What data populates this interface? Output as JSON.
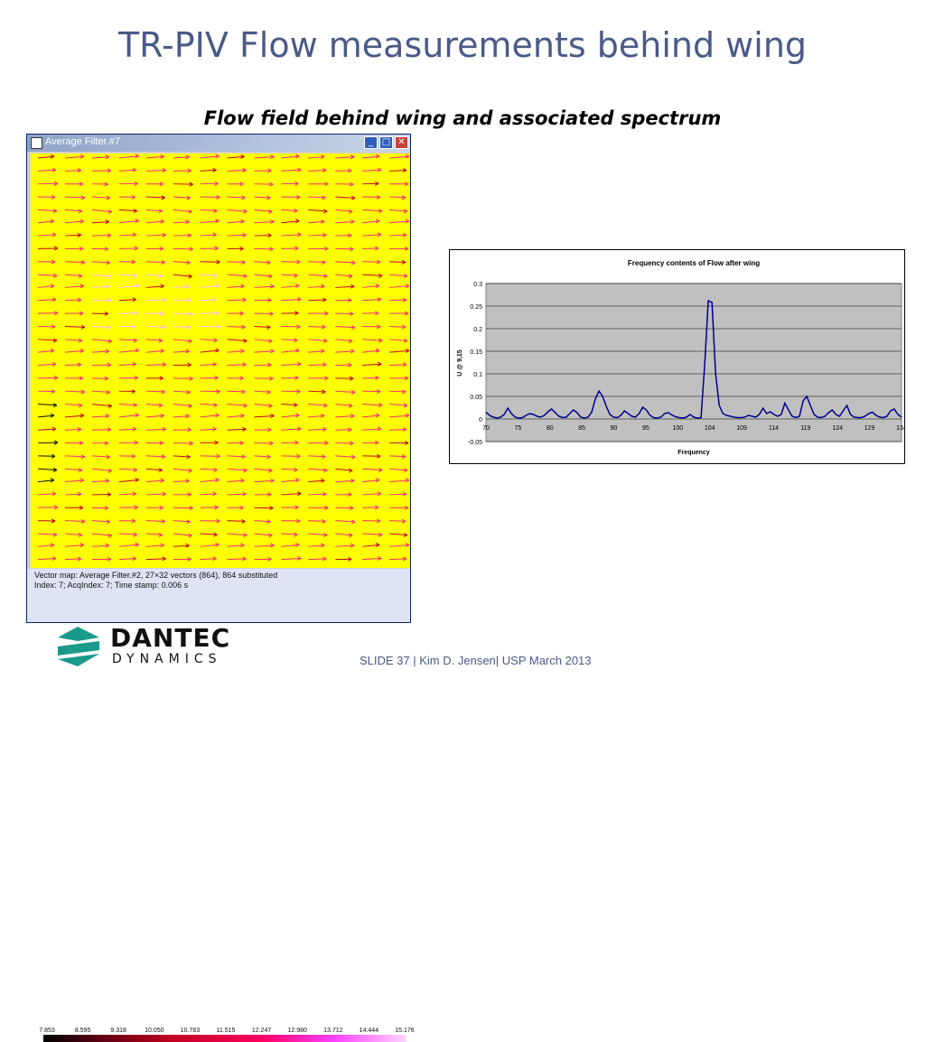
{
  "slide": {
    "title": "TR-PIV Flow measurements behind wing",
    "subtitle": "Flow field behind wing and associated spectrum",
    "footer": "SLIDE 37  |  Kim D. Jensen|  USP March 2013"
  },
  "window": {
    "title": "Average Filter.#7",
    "buttons": [
      "minimize",
      "maximize",
      "close"
    ],
    "status_line1": "Vector map: Average Filter.#2, 27×32 vectors (864), 864 substituted",
    "status_line2": "Index: 7; AcqIndex: 7; Time stamp: 0.006 s",
    "colorbar_ticks": [
      "7.853",
      "8.595",
      "9.318",
      "10.050",
      "10.783",
      "11.515",
      "12.247",
      "12.980",
      "13.712",
      "14.444",
      "15.176"
    ],
    "background_color": "#ffff00"
  },
  "logo": {
    "line1": "DANTEC",
    "line2": "DYNAMICS",
    "brand_color": "#1a9a8a"
  },
  "chart_data": {
    "type": "line",
    "title": "Frequency contents of Flow after wing",
    "xlabel": "Frequency",
    "ylabel": "U @ 9,15",
    "ylim": [
      -0.05,
      0.3
    ],
    "yticks": [
      "0.3",
      "0.25",
      "0.2",
      "0.15",
      "0.1",
      "0.05",
      "0",
      "-0.05"
    ],
    "xticks": [
      "70",
      "75",
      "80",
      "85",
      "90",
      "95",
      "100",
      "104",
      "109",
      "114",
      "119",
      "124",
      "129",
      "134"
    ],
    "grid": true,
    "line_color": "#00008b",
    "plot_background": "#c0c0c0",
    "series": [
      {
        "values": [
          0.015,
          0.008,
          0.004,
          0.002,
          0.004,
          0.01,
          0.024,
          0.012,
          0.004,
          0.002,
          0.003,
          0.008,
          0.012,
          0.01,
          0.006,
          0.004,
          0.008,
          0.016,
          0.022,
          0.014,
          0.006,
          0.003,
          0.004,
          0.012,
          0.02,
          0.014,
          0.004,
          0.002,
          0.004,
          0.015,
          0.045,
          0.062,
          0.05,
          0.028,
          0.01,
          0.004,
          0.003,
          0.008,
          0.018,
          0.012,
          0.006,
          0.004,
          0.012,
          0.026,
          0.02,
          0.008,
          0.003,
          0.002,
          0.004,
          0.012,
          0.014,
          0.009,
          0.005,
          0.003,
          0.002,
          0.004,
          0.01,
          0.004,
          0.002,
          0.003,
          0.12,
          0.262,
          0.258,
          0.1,
          0.03,
          0.012,
          0.008,
          0.006,
          0.004,
          0.003,
          0.003,
          0.004,
          0.008,
          0.006,
          0.004,
          0.01,
          0.024,
          0.012,
          0.016,
          0.01,
          0.006,
          0.01,
          0.035,
          0.02,
          0.006,
          0.003,
          0.006,
          0.04,
          0.05,
          0.03,
          0.01,
          0.004,
          0.003,
          0.006,
          0.014,
          0.02,
          0.01,
          0.006,
          0.018,
          0.03,
          0.01,
          0.004,
          0.003,
          0.003,
          0.006,
          0.012,
          0.015,
          0.008,
          0.004,
          0.003,
          0.006,
          0.018,
          0.022,
          0.01,
          0.004
        ]
      }
    ]
  }
}
